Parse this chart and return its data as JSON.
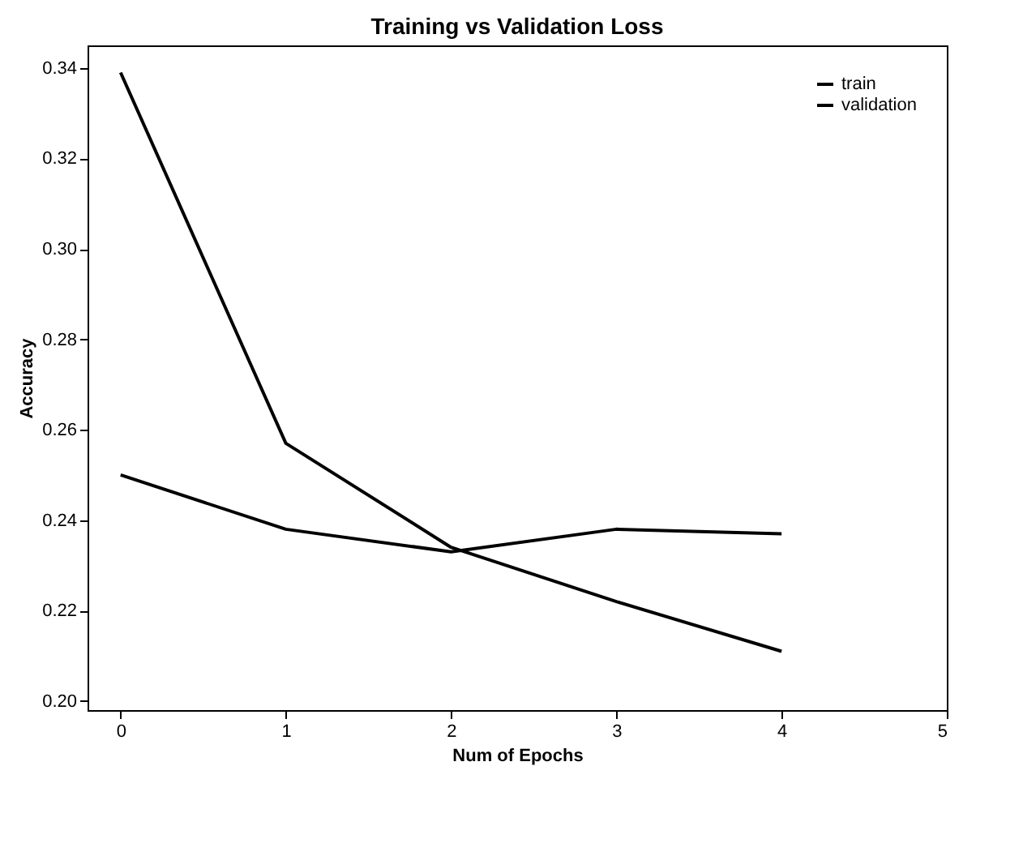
{
  "chart_data": {
    "type": "line",
    "title": "Training vs Validation Loss",
    "xlabel": "Num of Epochs",
    "ylabel": "Accuracy",
    "x": [
      0,
      1,
      2,
      3,
      4
    ],
    "series": [
      {
        "name": "train",
        "color": "#000000",
        "values": [
          0.339,
          0.257,
          0.234,
          0.222,
          0.211
        ]
      },
      {
        "name": "validation",
        "color": "#000000",
        "values": [
          0.25,
          0.238,
          0.233,
          0.238,
          0.237
        ]
      }
    ],
    "xlim": [
      -0.2,
      5
    ],
    "xticks": [
      0,
      1,
      2,
      3,
      4,
      5
    ],
    "ylim": [
      0.198,
      0.345
    ],
    "yticks": [
      {
        "value": 0.2,
        "label": "0.20"
      },
      {
        "value": 0.22,
        "label": "0.22"
      },
      {
        "value": 0.24,
        "label": "0.24"
      },
      {
        "value": 0.26,
        "label": "0.26"
      },
      {
        "value": 0.28,
        "label": "0.28"
      },
      {
        "value": 0.3,
        "label": "0.30"
      },
      {
        "value": 0.32,
        "label": "0.32"
      },
      {
        "value": 0.34,
        "label": "0.34"
      }
    ],
    "legend": "top right",
    "grid": false,
    "marker": "none",
    "line_style": "solid"
  }
}
